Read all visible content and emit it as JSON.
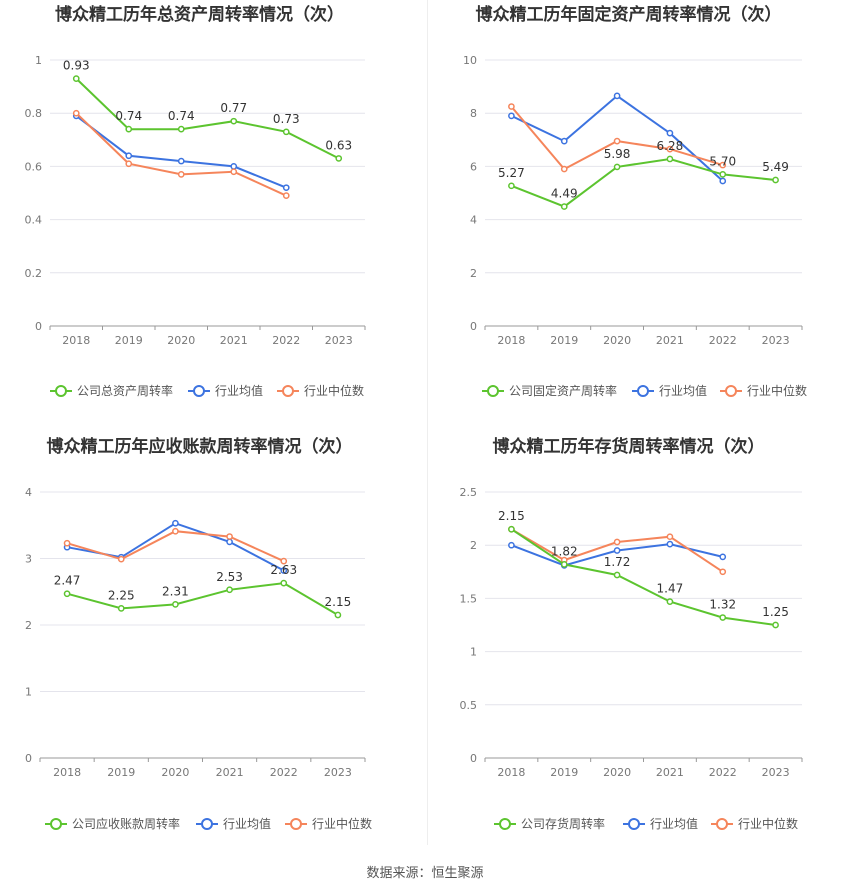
{
  "colors": {
    "company": "#5cc42f",
    "avg": "#3c73e0",
    "median": "#f5855b"
  },
  "source": "数据来源：恒生聚源",
  "chart_data": [
    {
      "type": "line",
      "title": "博众精工历年总资产周转率情况（次）",
      "categories": [
        "2018",
        "2019",
        "2020",
        "2021",
        "2022",
        "2023"
      ],
      "ylim": [
        0,
        1
      ],
      "yticks": [
        "0",
        "0.2",
        "0.4",
        "0.6",
        "0.8",
        "1"
      ],
      "grid": true,
      "legend_position": "bottom",
      "series": [
        {
          "name": "公司总资产周转率",
          "values": [
            0.93,
            0.74,
            0.74,
            0.77,
            0.73,
            0.63
          ],
          "labels": [
            "0.93",
            "0.74",
            "0.74",
            "0.77",
            "0.73",
            "0.63"
          ]
        },
        {
          "name": "行业均值",
          "values": [
            0.79,
            0.64,
            0.62,
            0.6,
            0.52,
            null
          ]
        },
        {
          "name": "行业中位数",
          "values": [
            0.8,
            0.61,
            0.57,
            0.58,
            0.49,
            null
          ]
        }
      ]
    },
    {
      "type": "line",
      "title": "博众精工历年固定资产周转率情况（次）",
      "categories": [
        "2018",
        "2019",
        "2020",
        "2021",
        "2022",
        "2023"
      ],
      "ylim": [
        0,
        10
      ],
      "yticks": [
        "0",
        "2",
        "4",
        "6",
        "8",
        "10"
      ],
      "grid": true,
      "legend_position": "bottom",
      "series": [
        {
          "name": "公司固定资产周转率",
          "values": [
            5.27,
            4.49,
            5.98,
            6.28,
            5.7,
            5.49
          ],
          "labels": [
            "5.27",
            "4.49",
            "5.98",
            "6.28",
            "5.70",
            "5.49"
          ]
        },
        {
          "name": "行业均值",
          "values": [
            7.9,
            6.95,
            8.65,
            7.25,
            5.45,
            null
          ]
        },
        {
          "name": "行业中位数",
          "values": [
            8.25,
            5.9,
            6.95,
            6.65,
            6.05,
            null
          ]
        }
      ]
    },
    {
      "type": "line",
      "title": "博众精工历年应收账款周转率情况（次）",
      "categories": [
        "2018",
        "2019",
        "2020",
        "2021",
        "2022",
        "2023"
      ],
      "ylim": [
        0,
        4
      ],
      "yticks": [
        "0",
        "1",
        "2",
        "3",
        "4"
      ],
      "grid": true,
      "legend_position": "bottom",
      "series": [
        {
          "name": "公司应收账款周转率",
          "values": [
            2.47,
            2.25,
            2.31,
            2.53,
            2.63,
            2.15
          ],
          "labels": [
            "2.47",
            "2.25",
            "2.31",
            "2.53",
            "2.63",
            "2.15"
          ]
        },
        {
          "name": "行业均值",
          "values": [
            3.17,
            3.02,
            3.53,
            3.25,
            2.82,
            null
          ]
        },
        {
          "name": "行业中位数",
          "values": [
            3.23,
            2.99,
            3.41,
            3.33,
            2.96,
            null
          ]
        }
      ]
    },
    {
      "type": "line",
      "title": "博众精工历年存货周转率情况（次）",
      "categories": [
        "2018",
        "2019",
        "2020",
        "2021",
        "2022",
        "2023"
      ],
      "ylim": [
        0,
        2.5
      ],
      "yticks": [
        "0",
        "0.5",
        "1",
        "1.5",
        "2",
        "2.5"
      ],
      "grid": true,
      "legend_position": "bottom",
      "series": [
        {
          "name": "公司存货周转率",
          "values": [
            2.15,
            1.82,
            1.72,
            1.47,
            1.32,
            1.25
          ],
          "labels": [
            "2.15",
            "1.82",
            "1.72",
            "1.47",
            "1.32",
            "1.25"
          ]
        },
        {
          "name": "行业均值",
          "values": [
            2.0,
            1.81,
            1.95,
            2.01,
            1.89,
            null
          ]
        },
        {
          "name": "行业中位数",
          "values": [
            2.15,
            1.86,
            2.03,
            2.08,
            1.75,
            null
          ]
        }
      ]
    }
  ]
}
